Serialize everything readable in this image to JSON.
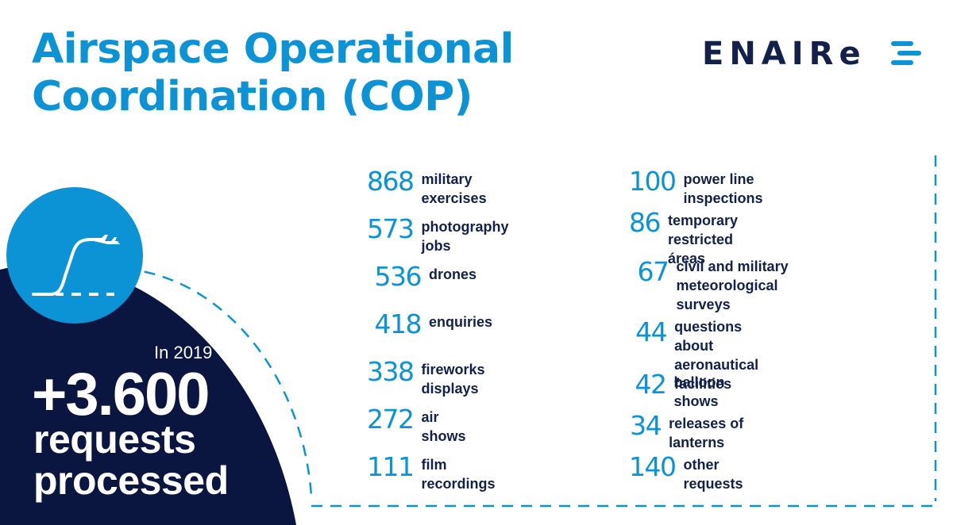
{
  "title": {
    "line1": "Airspace Operational",
    "line2": "Coordination (COP)"
  },
  "logo": {
    "text": "ENAIRe",
    "name": "ENAIRE"
  },
  "summary": {
    "year": "In 2019",
    "total": "+3.600",
    "line1": "requests",
    "line2": "processed"
  },
  "left_stats": [
    {
      "value": "868",
      "label": "military exercises"
    },
    {
      "value": "573",
      "label": "photography jobs"
    },
    {
      "value": "536",
      "label": "drones"
    },
    {
      "value": "418",
      "label": "enquiries"
    },
    {
      "value": "338",
      "label": "fireworks displays"
    },
    {
      "value": "272",
      "label": "air shows"
    },
    {
      "value": "111",
      "label": "film recordings"
    }
  ],
  "right_stats": [
    {
      "value": "100",
      "label": "power line inspections"
    },
    {
      "value": "86",
      "label": "temporary restricted áreas"
    },
    {
      "value": "67",
      "label1": "civil and military",
      "label2": "meteorological surveys"
    },
    {
      "value": "44",
      "label1": "questions about",
      "label2": "aeronautical facilities"
    },
    {
      "value": "42",
      "label": "balloon shows"
    },
    {
      "value": "34",
      "label": "releases of lanterns"
    },
    {
      "value": "140",
      "label": "other requests"
    }
  ],
  "colors": {
    "accent": "#0c93d6",
    "navy": "#13214a",
    "background": "#ffffff"
  },
  "icons": {
    "hero": "aircraft-takeoff-icon"
  }
}
